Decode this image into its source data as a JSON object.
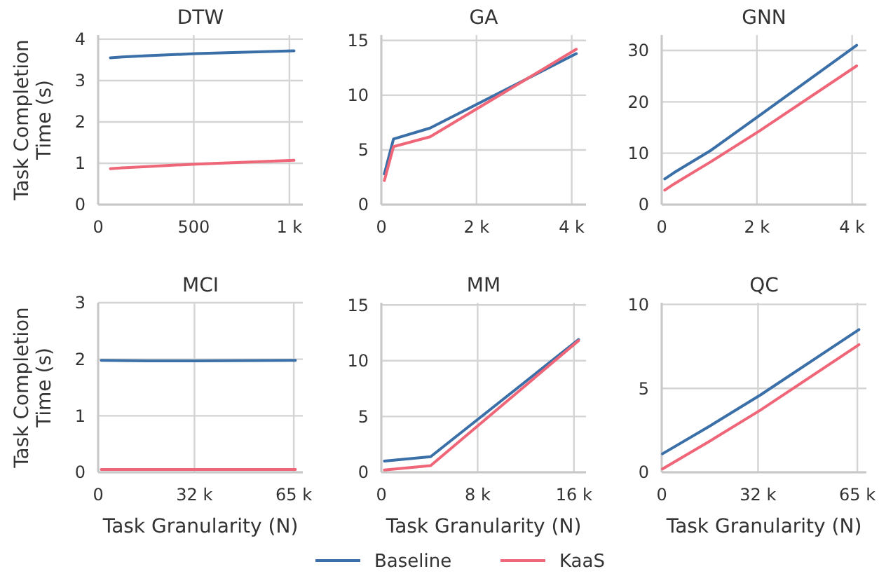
{
  "chart_data": [
    {
      "type": "line",
      "title": "DTW",
      "ylabel": "Task Completion Time (s)",
      "xlim": [
        0,
        1070
      ],
      "xticks": [
        {
          "value": 0,
          "label": "0"
        },
        {
          "value": 500,
          "label": "500"
        },
        {
          "value": 1000,
          "label": "1 k"
        }
      ],
      "ylim": [
        0,
        4.1
      ],
      "yticks": [
        0,
        1,
        2,
        3,
        4
      ],
      "grid": true,
      "legend": "bottom",
      "series": [
        {
          "name": "Baseline",
          "color": "#3a6fa8",
          "x": [
            64,
            128,
            256,
            512,
            1024
          ],
          "values": [
            3.55,
            3.57,
            3.6,
            3.65,
            3.72
          ]
        },
        {
          "name": "KaaS",
          "color": "#ee6677",
          "x": [
            64,
            128,
            256,
            512,
            1024
          ],
          "values": [
            0.87,
            0.89,
            0.92,
            0.98,
            1.07
          ]
        }
      ]
    },
    {
      "type": "line",
      "title": "GA",
      "xlim": [
        0,
        4300
      ],
      "xticks": [
        {
          "value": 0,
          "label": "0"
        },
        {
          "value": 2000,
          "label": "2 k"
        },
        {
          "value": 4000,
          "label": "4 k"
        }
      ],
      "ylim": [
        0,
        15.5
      ],
      "yticks": [
        0,
        5,
        10,
        15
      ],
      "grid": true,
      "series": [
        {
          "color": "#3a6fa8",
          "x": [
            64,
            256,
            1024,
            4096
          ],
          "values": [
            2.8,
            6.0,
            7.0,
            13.8
          ]
        },
        {
          "color": "#ee6677",
          "x": [
            64,
            256,
            1024,
            4096
          ],
          "values": [
            2.2,
            5.3,
            6.2,
            14.2
          ]
        }
      ]
    },
    {
      "type": "line",
      "title": "GNN",
      "xlim": [
        0,
        4300
      ],
      "xticks": [
        {
          "value": 0,
          "label": "0"
        },
        {
          "value": 2000,
          "label": "2 k"
        },
        {
          "value": 4000,
          "label": "4 k"
        }
      ],
      "ylim": [
        0,
        33
      ],
      "yticks": [
        0,
        10,
        20,
        30
      ],
      "grid": true,
      "series": [
        {
          "color": "#3a6fa8",
          "x": [
            64,
            256,
            1024,
            2048,
            4096
          ],
          "values": [
            5,
            6.2,
            10.5,
            17.3,
            31
          ]
        },
        {
          "color": "#ee6677",
          "x": [
            64,
            256,
            1024,
            2048,
            4096
          ],
          "values": [
            2.8,
            4,
            8.3,
            14.3,
            27
          ]
        }
      ]
    },
    {
      "type": "line",
      "title": "MCI",
      "ylabel": "Task Completion Time (s)",
      "xlabel": "Task Granularity (N)",
      "xlim": [
        0,
        68000
      ],
      "xticks": [
        {
          "value": 0,
          "label": "0"
        },
        {
          "value": 32000,
          "label": "32 k"
        },
        {
          "value": 65000,
          "label": "65 k"
        }
      ],
      "ylim": [
        0,
        3
      ],
      "yticks": [
        0,
        1,
        2,
        3
      ],
      "grid": true,
      "series": [
        {
          "color": "#3a6fa8",
          "x": [
            1024,
            16384,
            32768,
            65536
          ],
          "values": [
            1.98,
            1.97,
            1.97,
            1.98
          ]
        },
        {
          "color": "#ee6677",
          "x": [
            1024,
            16384,
            32768,
            65536
          ],
          "values": [
            0.05,
            0.05,
            0.05,
            0.05
          ]
        }
      ]
    },
    {
      "type": "line",
      "title": "MM",
      "xlabel": "Task Granularity (N)",
      "xlim": [
        0,
        17000
      ],
      "xticks": [
        {
          "value": 0,
          "label": "0"
        },
        {
          "value": 8000,
          "label": "8 k"
        },
        {
          "value": 16000,
          "label": "16 k"
        }
      ],
      "ylim": [
        0,
        15.2
      ],
      "yticks": [
        0,
        5,
        10,
        15
      ],
      "grid": true,
      "series": [
        {
          "color": "#3a6fa8",
          "x": [
            256,
            4096,
            16384
          ],
          "values": [
            1.0,
            1.4,
            11.9
          ]
        },
        {
          "color": "#ee6677",
          "x": [
            256,
            4096,
            16384
          ],
          "values": [
            0.2,
            0.6,
            11.8
          ]
        }
      ]
    },
    {
      "type": "line",
      "title": "QC",
      "xlabel": "Task Granularity (N)",
      "xlim": [
        0,
        68000
      ],
      "xticks": [
        {
          "value": 0,
          "label": "0"
        },
        {
          "value": 32000,
          "label": "32 k"
        },
        {
          "value": 65000,
          "label": "65 k"
        }
      ],
      "ylim": [
        0,
        10.1
      ],
      "yticks": [
        0,
        5,
        10
      ],
      "grid": true,
      "series": [
        {
          "color": "#3a6fa8",
          "x": [
            256,
            16384,
            32768,
            65536
          ],
          "values": [
            1.1,
            2.8,
            4.6,
            8.5
          ]
        },
        {
          "color": "#ee6677",
          "x": [
            256,
            16384,
            32768,
            65536
          ],
          "values": [
            0.2,
            1.9,
            3.7,
            7.6
          ]
        }
      ]
    }
  ]
}
